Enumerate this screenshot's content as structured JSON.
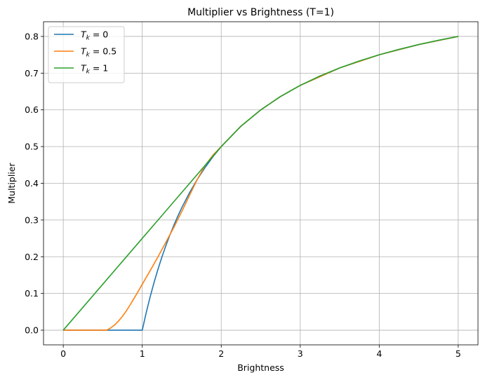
{
  "chart_data": {
    "type": "line",
    "title": "Multiplier vs Brightness (T=1)",
    "xlabel": "Brightness",
    "ylabel": "Multiplier",
    "xlim": [
      -0.25,
      5.25
    ],
    "ylim": [
      -0.04,
      0.84
    ],
    "xticks": [
      0,
      1,
      2,
      3,
      4,
      5
    ],
    "xtick_labels": [
      "0",
      "1",
      "2",
      "3",
      "4",
      "5"
    ],
    "yticks": [
      0.0,
      0.1,
      0.2,
      0.3,
      0.4,
      0.5,
      0.6,
      0.7,
      0.8
    ],
    "ytick_labels": [
      "0.0",
      "0.1",
      "0.2",
      "0.3",
      "0.4",
      "0.5",
      "0.6",
      "0.7",
      "0.8"
    ],
    "grid": true,
    "legend_position": "upper-left",
    "series": [
      {
        "name_prefix": "T",
        "name_sub": "k",
        "name_suffix": " = 0",
        "color": "#1f77b4",
        "x": [
          0,
          0.5,
          1.0,
          1.05,
          1.1,
          1.15,
          1.2,
          1.25,
          1.3,
          1.35,
          1.4,
          1.45,
          1.5,
          1.6,
          1.7,
          1.8,
          1.9,
          2.0,
          2.25,
          2.5,
          2.75,
          3.0,
          3.5,
          4.0,
          4.5,
          5.0
        ],
        "y": [
          0,
          0,
          0,
          0.0476,
          0.0909,
          0.1304,
          0.1667,
          0.2,
          0.2308,
          0.2593,
          0.2857,
          0.3103,
          0.3333,
          0.375,
          0.4118,
          0.4444,
          0.4737,
          0.5,
          0.5556,
          0.6,
          0.6364,
          0.6667,
          0.7143,
          0.75,
          0.7778,
          0.8
        ]
      },
      {
        "name_prefix": "T",
        "name_sub": "k",
        "name_suffix": " = 0.5",
        "color": "#ff7f0e",
        "x": [
          0,
          0.3,
          0.55,
          0.6,
          0.65,
          0.7,
          0.75,
          0.8,
          0.85,
          0.9,
          0.95,
          1.0,
          1.1,
          1.2,
          1.3,
          1.4,
          1.5,
          1.6,
          1.7,
          1.8,
          1.9,
          2.0,
          2.25,
          2.5,
          2.75,
          3.0,
          3.5,
          4.0,
          4.5,
          5.0
        ],
        "y": [
          0,
          0,
          0,
          0.006,
          0.014,
          0.025,
          0.038,
          0.053,
          0.07,
          0.088,
          0.106,
          0.125,
          0.162,
          0.2,
          0.24,
          0.28,
          0.323,
          0.368,
          0.412,
          0.45,
          0.478,
          0.5,
          0.5556,
          0.6,
          0.6364,
          0.6667,
          0.7143,
          0.75,
          0.7778,
          0.8
        ]
      },
      {
        "name_prefix": "T",
        "name_sub": "k",
        "name_suffix": " = 1",
        "color": "#2ca02c",
        "x": [
          0,
          0.25,
          0.5,
          0.75,
          1.0,
          1.25,
          1.5,
          1.75,
          2.0,
          2.25,
          2.5,
          2.75,
          3.0,
          3.25,
          3.5,
          3.75,
          4.0,
          4.25,
          4.5,
          4.75,
          5.0
        ],
        "y": [
          0,
          0.0625,
          0.125,
          0.1875,
          0.25,
          0.3125,
          0.375,
          0.4375,
          0.5,
          0.5556,
          0.6,
          0.6364,
          0.6667,
          0.6923,
          0.7143,
          0.7333,
          0.75,
          0.7647,
          0.7778,
          0.7895,
          0.8
        ]
      }
    ]
  }
}
